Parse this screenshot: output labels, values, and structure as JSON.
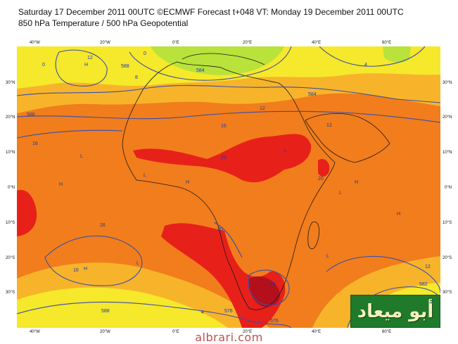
{
  "header": {
    "line1": "Saturday 17 December 2011 00UTC ©ECMWF Forecast t+048 VT: Monday 19 December 2011 00UTC",
    "line2": "850 hPa Temperature / 500 hPa Geopotential"
  },
  "axes": {
    "top_lon": [
      "40°W",
      "20°W",
      "0°E",
      "20°E",
      "40°E",
      "60°E"
    ],
    "bottom_lon": [
      "40°W",
      "20°W",
      "0°E",
      "20°E",
      "40°E",
      "60°E"
    ],
    "left_lat": [
      "30°N",
      "20°N",
      "10°N",
      "0°N",
      "10°S",
      "20°S",
      "30°S"
    ],
    "right_lat": [
      "30°N",
      "20°N",
      "10°N",
      "0°N",
      "10°S",
      "20°S",
      "30°S"
    ]
  },
  "colors": {
    "cold_green": "#b9e23a",
    "yellow": "#f6e82a",
    "light_orange": "#f7b42a",
    "orange": "#f27d1c",
    "red": "#e8201a",
    "dark_red": "#b4101c",
    "contour": "#3a4fa8",
    "coast": "#1a1a1a"
  },
  "contours": {
    "geopotential_labels": [
      "588",
      "584",
      "588",
      "584",
      "582",
      "588",
      "576",
      "576",
      "570",
      "582"
    ],
    "temperature_labels": [
      "0",
      "4",
      "8",
      "12",
      "12",
      "16",
      "16",
      "12",
      "20",
      "20",
      "16",
      "20",
      "24",
      "16",
      "12",
      "8",
      "4",
      "0"
    ]
  },
  "pressure_markers": [
    "H",
    "L",
    "H",
    "L",
    "H",
    "L",
    "H",
    "L",
    "H",
    "L",
    "H",
    "L"
  ],
  "logo": {
    "text": "أبو ميعاد"
  },
  "footer": {
    "site": "albrari.com"
  }
}
